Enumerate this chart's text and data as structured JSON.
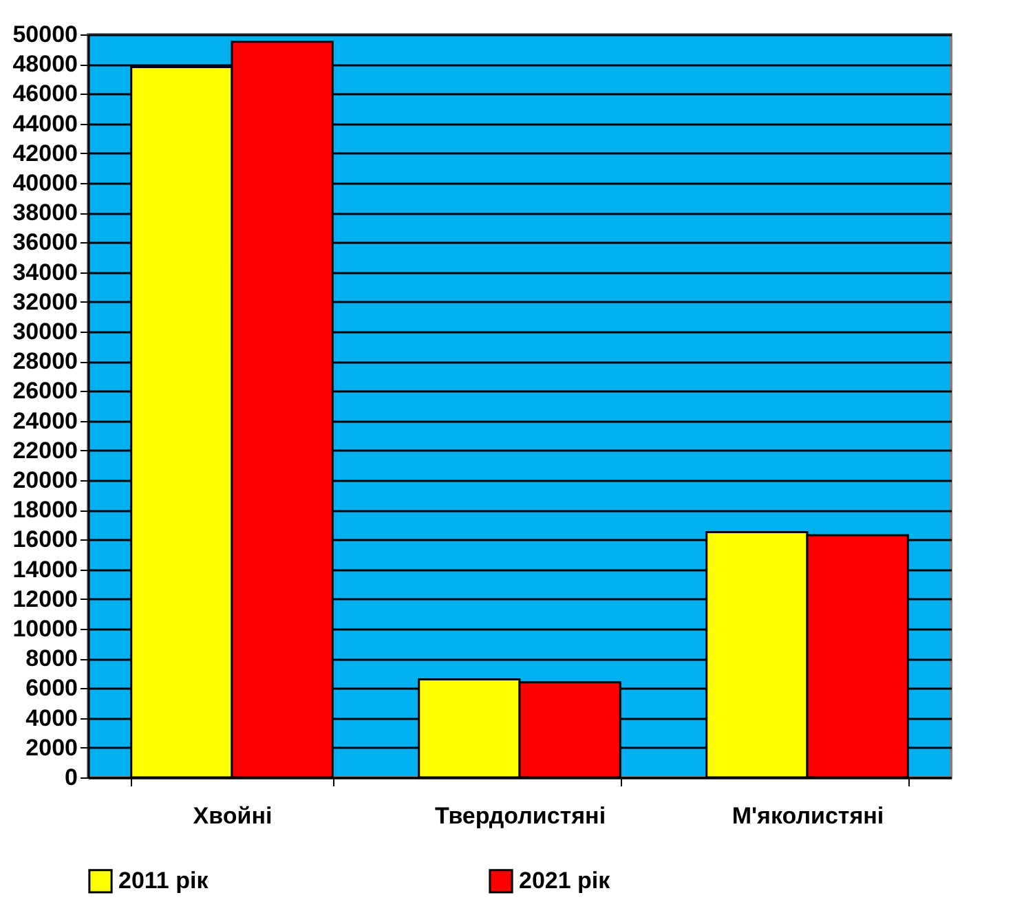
{
  "chart_data": {
    "type": "bar",
    "categories": [
      "Хвойні",
      "Твердолистяні",
      "М'яколистяні"
    ],
    "series": [
      {
        "name": "2011 рік",
        "color": "#ffff00",
        "values": [
          47800,
          6600,
          16500
        ]
      },
      {
        "name": "2021 рік",
        "color": "#ff0000",
        "values": [
          49500,
          6400,
          16300
        ]
      }
    ],
    "ylim": [
      0,
      50000
    ],
    "yticks": [
      0,
      2000,
      4000,
      6000,
      8000,
      10000,
      12000,
      14000,
      16000,
      18000,
      20000,
      22000,
      24000,
      26000,
      28000,
      30000,
      32000,
      34000,
      36000,
      38000,
      40000,
      42000,
      44000,
      46000,
      48000,
      50000
    ],
    "grid": "y",
    "legend": "bottom"
  }
}
